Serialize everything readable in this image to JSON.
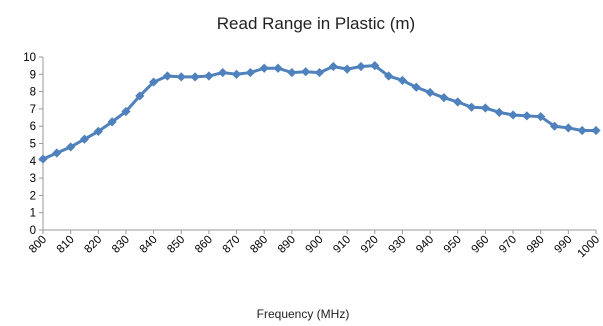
{
  "chart_data": {
    "type": "line",
    "title": "Read Range in Plastic (m)",
    "xlabel": "Frequency (MHz)",
    "ylabel": "",
    "ylim": [
      0,
      10
    ],
    "yticks": [
      0,
      1,
      2,
      3,
      4,
      5,
      6,
      7,
      8,
      9,
      10
    ],
    "xlim": [
      800,
      1000
    ],
    "xticks": [
      800,
      810,
      820,
      830,
      840,
      850,
      860,
      870,
      880,
      890,
      900,
      910,
      920,
      930,
      940,
      950,
      960,
      970,
      980,
      990,
      1000
    ],
    "grid": false,
    "legend": "none",
    "line_color": "#4F81BD",
    "marker": "diamond",
    "x": [
      800,
      805,
      810,
      815,
      820,
      825,
      830,
      835,
      840,
      845,
      850,
      855,
      860,
      865,
      870,
      875,
      880,
      885,
      890,
      895,
      900,
      905,
      910,
      915,
      920,
      925,
      930,
      935,
      940,
      945,
      950,
      955,
      960,
      965,
      970,
      975,
      980,
      985,
      990,
      995,
      1000
    ],
    "series": [
      {
        "values": [
          4.1,
          4.45,
          4.8,
          5.25,
          5.7,
          6.25,
          6.85,
          7.75,
          8.55,
          8.9,
          8.85,
          8.85,
          8.9,
          9.1,
          9.0,
          9.1,
          9.35,
          9.35,
          9.1,
          9.15,
          9.1,
          9.45,
          9.3,
          9.45,
          9.5,
          8.9,
          8.65,
          8.25,
          7.95,
          7.65,
          7.4,
          7.1,
          7.05,
          6.8,
          6.65,
          6.6,
          6.55,
          6.0,
          5.9,
          5.75,
          5.75
        ]
      }
    ]
  }
}
